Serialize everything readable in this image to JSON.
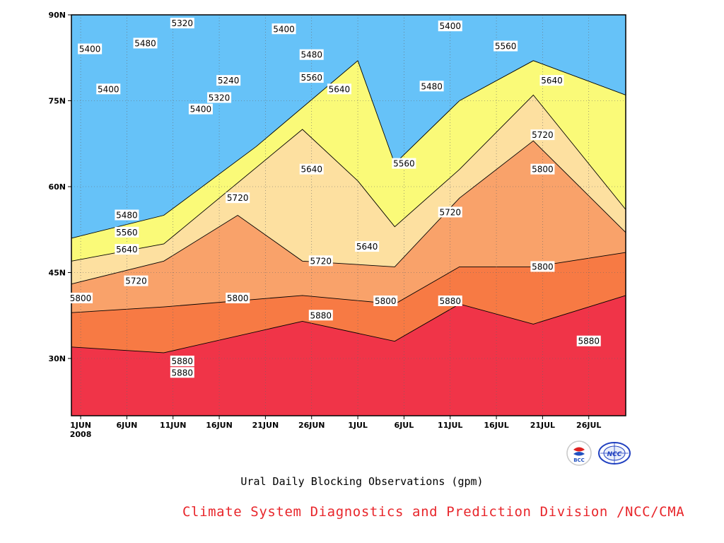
{
  "chart_data": {
    "type": "heatmap",
    "subtype": "filled-contour",
    "title": "Ural Daily Blocking Observations (gpm)",
    "x_ticks": [
      "1JUN",
      "6JUN",
      "11JUN",
      "16JUN",
      "21JUN",
      "26JUN",
      "1JUL",
      "6JUL",
      "11JUL",
      "16JUL",
      "21JUL",
      "26JUL"
    ],
    "x_year_label": "2008",
    "x_range": [
      "2008-05-31",
      "2008-07-30"
    ],
    "y_ticks": [
      "30N",
      "45N",
      "60N",
      "75N",
      "90N"
    ],
    "y_range": [
      20,
      90
    ],
    "contour_levels": [
      5240,
      5320,
      5400,
      5480,
      5560,
      5640,
      5720,
      5800,
      5880
    ],
    "fill_colors": {
      "below_5240": "#1a18d8",
      "5240_5320": "#3c4ee8",
      "5320_5400": "#4a82e0",
      "5400_5480": "#66c2f8",
      "5480_5560": "#fafa78",
      "5560_5640": "#fde0a0",
      "5640_5720": "#f9a26a",
      "5720_5800": "#f77a44",
      "5800_5880": "#f07078",
      "above_5880": "#f03448"
    },
    "approximate_contours": [
      {
        "level": 5880,
        "points": [
          [
            "2008-05-31",
            32
          ],
          [
            "2008-06-10",
            31
          ],
          [
            "2008-06-25",
            36.5
          ],
          [
            "2008-07-05",
            33
          ],
          [
            "2008-07-12",
            39.5
          ],
          [
            "2008-07-20",
            36
          ],
          [
            "2008-07-30",
            41
          ]
        ]
      },
      {
        "level": 5800,
        "points": [
          [
            "2008-05-31",
            38
          ],
          [
            "2008-06-10",
            39
          ],
          [
            "2008-06-25",
            41
          ],
          [
            "2008-07-05",
            39.5
          ],
          [
            "2008-07-12",
            46
          ],
          [
            "2008-07-20",
            46
          ],
          [
            "2008-07-30",
            48.5
          ]
        ]
      },
      {
        "level": 5720,
        "points": [
          [
            "2008-05-31",
            43
          ],
          [
            "2008-06-10",
            47
          ],
          [
            "2008-06-18",
            55
          ],
          [
            "2008-06-25",
            47
          ],
          [
            "2008-07-05",
            46
          ],
          [
            "2008-07-12",
            58
          ],
          [
            "2008-07-20",
            68
          ],
          [
            "2008-07-30",
            52
          ]
        ]
      },
      {
        "level": 5640,
        "points": [
          [
            "2008-05-31",
            47
          ],
          [
            "2008-06-10",
            50
          ],
          [
            "2008-06-25",
            70
          ],
          [
            "2008-07-01",
            61
          ],
          [
            "2008-07-05",
            53
          ],
          [
            "2008-07-12",
            63
          ],
          [
            "2008-07-20",
            76
          ],
          [
            "2008-07-30",
            56
          ]
        ]
      },
      {
        "level": 5560,
        "points": [
          [
            "2008-05-31",
            51
          ],
          [
            "2008-06-10",
            55
          ],
          [
            "2008-06-20",
            67
          ],
          [
            "2008-07-01",
            82
          ],
          [
            "2008-07-05",
            64
          ],
          [
            "2008-07-12",
            75
          ],
          [
            "2008-07-20",
            82
          ],
          [
            "2008-07-30",
            76
          ]
        ]
      }
    ],
    "labels": [
      {
        "text": "5400",
        "date": "2008-06-02",
        "lat": 84
      },
      {
        "text": "5480",
        "date": "2008-06-08",
        "lat": 85
      },
      {
        "text": "5320",
        "date": "2008-06-12",
        "lat": 88.5
      },
      {
        "text": "5400",
        "date": "2008-06-23",
        "lat": 87.5
      },
      {
        "text": "5400",
        "date": "2008-06-04",
        "lat": 77
      },
      {
        "text": "5240",
        "date": "2008-06-17",
        "lat": 78.5
      },
      {
        "text": "5320",
        "date": "2008-06-16",
        "lat": 75.5
      },
      {
        "text": "5400",
        "date": "2008-06-14",
        "lat": 73.5
      },
      {
        "text": "5480",
        "date": "2008-06-26",
        "lat": 83
      },
      {
        "text": "5560",
        "date": "2008-06-26",
        "lat": 79
      },
      {
        "text": "5640",
        "date": "2008-06-29",
        "lat": 77
      },
      {
        "text": "5400",
        "date": "2008-07-11",
        "lat": 88
      },
      {
        "text": "5560",
        "date": "2008-07-17",
        "lat": 84.5
      },
      {
        "text": "5480",
        "date": "2008-07-09",
        "lat": 77.5
      },
      {
        "text": "5640",
        "date": "2008-07-22",
        "lat": 78.5
      },
      {
        "text": "5720",
        "date": "2008-07-21",
        "lat": 69
      },
      {
        "text": "5800",
        "date": "2008-07-21",
        "lat": 63
      },
      {
        "text": "5640",
        "date": "2008-06-26",
        "lat": 63
      },
      {
        "text": "5560",
        "date": "2008-07-06",
        "lat": 64
      },
      {
        "text": "5720",
        "date": "2008-06-18",
        "lat": 58
      },
      {
        "text": "5720",
        "date": "2008-07-11",
        "lat": 55.5
      },
      {
        "text": "5480",
        "date": "2008-06-06",
        "lat": 55
      },
      {
        "text": "5560",
        "date": "2008-06-06",
        "lat": 52
      },
      {
        "text": "5640",
        "date": "2008-06-06",
        "lat": 49
      },
      {
        "text": "5640",
        "date": "2008-07-02",
        "lat": 49.5
      },
      {
        "text": "5720",
        "date": "2008-06-27",
        "lat": 47
      },
      {
        "text": "5720",
        "date": "2008-06-07",
        "lat": 43.5
      },
      {
        "text": "5800",
        "date": "2008-07-21",
        "lat": 46
      },
      {
        "text": "5800",
        "date": "2008-06-01",
        "lat": 40.5
      },
      {
        "text": "5800",
        "date": "2008-06-18",
        "lat": 40.5
      },
      {
        "text": "5800",
        "date": "2008-07-04",
        "lat": 40
      },
      {
        "text": "5880",
        "date": "2008-06-27",
        "lat": 37.5
      },
      {
        "text": "5880",
        "date": "2008-07-11",
        "lat": 40
      },
      {
        "text": "5880",
        "date": "2008-07-26",
        "lat": 33
      },
      {
        "text": "5880",
        "date": "2008-06-12",
        "lat": 29.5
      },
      {
        "text": "5880",
        "date": "2008-06-12",
        "lat": 27.5
      }
    ],
    "grid": "dotted",
    "legend": "none"
  },
  "footer": {
    "subtitle": "Ural Daily Blocking Observations (gpm)",
    "credit": "Climate System Diagnostics and Prediction Division /NCC/CMA",
    "logo_left_name": "bcc-logo",
    "logo_left_text": "BCC",
    "logo_right_name": "ncc-logo",
    "logo_right_text": "NCC"
  }
}
